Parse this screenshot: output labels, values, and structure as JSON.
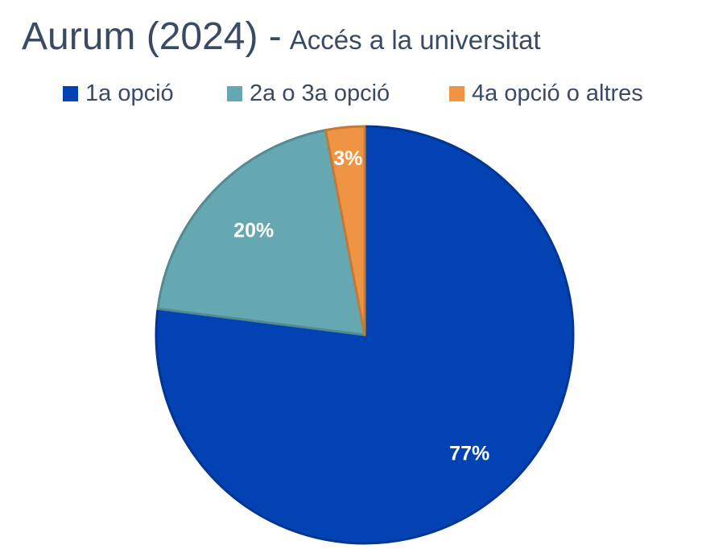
{
  "chart_data": {
    "type": "pie",
    "title": "Aurum (2024) -",
    "subtitle": "Accés a la universitat",
    "legend_position": "top",
    "categories": [
      "1a opció",
      "2a o 3a opció",
      "4a opció o altres"
    ],
    "values": [
      77,
      20,
      3
    ],
    "data_labels": [
      "77%",
      "20%",
      "3%"
    ],
    "colors": [
      "#0242b2",
      "#66a8b1",
      "#ef9443"
    ],
    "start_angle": "12 o'clock",
    "direction": "clockwise"
  }
}
